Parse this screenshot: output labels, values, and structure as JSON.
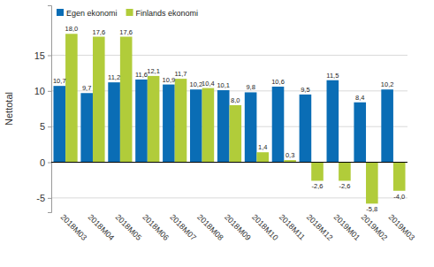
{
  "chart_data": {
    "type": "bar",
    "y_label": "Nettotal",
    "categories": [
      "2018M03",
      "2018M04",
      "2018M05",
      "2018M06",
      "2018M07",
      "2018M08",
      "2018M09",
      "2018M10",
      "2018M11",
      "2018M12",
      "2019M01",
      "2019M02",
      "2019M03"
    ],
    "series": [
      {
        "name": "Egen ekonomi",
        "color": "#0a6db5",
        "values": [
          10.7,
          9.7,
          11.2,
          11.6,
          10.9,
          10.2,
          10.1,
          9.8,
          10.6,
          9.5,
          11.5,
          8.4,
          10.2
        ],
        "value_labels": [
          "10,7",
          "9,7",
          "11,2",
          "11,6",
          "10,9",
          "10,2",
          "10,1",
          "9,8",
          "10,6",
          "9,5",
          "11,5",
          "8,4",
          "10,2"
        ]
      },
      {
        "name": "Finlands ekonomi",
        "color": "#b1cc3a",
        "values": [
          18.0,
          17.6,
          17.6,
          12.1,
          11.7,
          10.4,
          8.0,
          1.4,
          0.3,
          -2.6,
          -2.6,
          -5.8,
          -4.0
        ],
        "value_labels": [
          "18,0",
          "17,6",
          "17,6",
          "12,1",
          "11,7",
          "10,4",
          "8,0",
          "1,4",
          "0,3",
          "-2,6",
          "-2,6",
          "-5,8",
          "-4,0"
        ]
      }
    ],
    "ylim": [
      -7,
      22
    ],
    "yticks": [
      -5,
      0,
      5,
      10,
      15
    ],
    "grid": true,
    "legend": "top-left",
    "data_labels": true
  }
}
